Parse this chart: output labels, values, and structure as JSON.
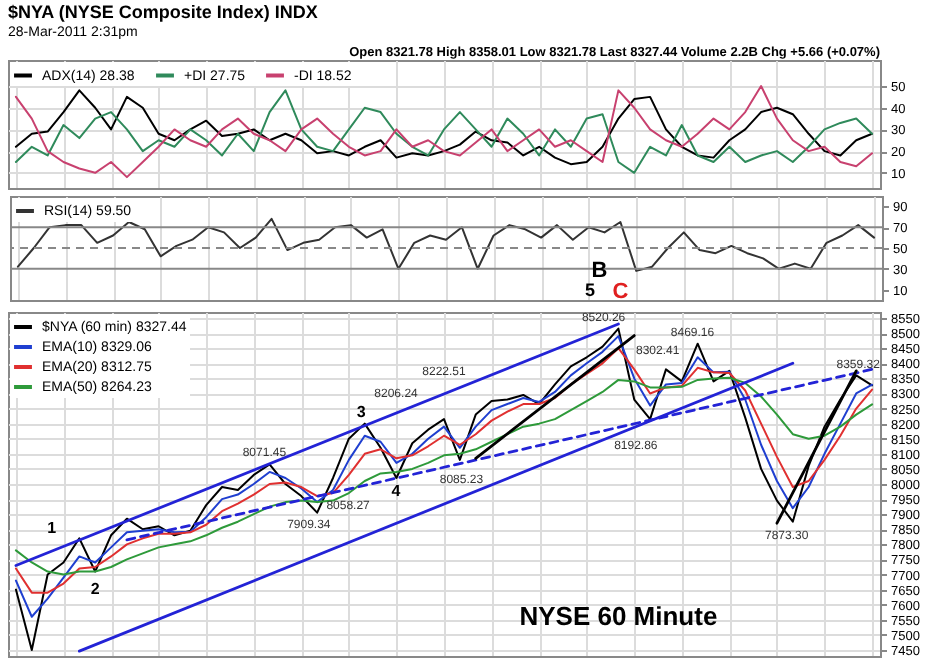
{
  "chart_data": [
    {
      "type": "line",
      "title": "$NYA (NYSE Composite Index) INDX",
      "subtitle": "28-Mar-2011 2:31pm",
      "categories": [
        null,
        null,
        null,
        null,
        null,
        null,
        null,
        null,
        null,
        null,
        null,
        null,
        null,
        null,
        null,
        null,
        null,
        null,
        null,
        null,
        null,
        null,
        null,
        null,
        null,
        null,
        null,
        null,
        null,
        null,
        null,
        null,
        null,
        null,
        null,
        null,
        null,
        null,
        null,
        null,
        null,
        null,
        null,
        null,
        null,
        null,
        null,
        null,
        null,
        null,
        null,
        null,
        null,
        null,
        null
      ],
      "ylim": [
        3,
        62
      ],
      "yticks": [
        10,
        20,
        30,
        40,
        50
      ],
      "grid": true,
      "legend": "top left",
      "tick_labels": "y",
      "annotations": [
        "Open 8321.78 High 8358.01 Low 8321.78 Last 8327.44 Volume 2.2B Chg +5.66 (+0.07%)"
      ],
      "series": [
        {
          "name": "ADX(14) 28.38",
          "color": "#000000",
          "values": [
            22,
            28,
            29,
            38,
            48,
            40,
            30,
            45,
            40,
            28,
            25,
            30,
            34,
            27,
            28,
            30,
            25,
            28,
            25,
            19,
            20,
            18,
            22,
            25,
            17,
            19,
            18,
            20,
            23,
            29,
            25,
            24,
            18,
            22,
            17,
            14,
            15,
            22,
            35,
            44,
            45,
            30,
            22,
            18,
            17,
            25,
            30,
            38,
            40,
            37,
            28,
            20,
            18,
            25,
            28
          ]
        },
        {
          "name": "+DI 27.75",
          "color": "#2f8a5b",
          "values": [
            15,
            22,
            18,
            32,
            26,
            35,
            38,
            30,
            20,
            25,
            22,
            30,
            25,
            18,
            28,
            20,
            38,
            48,
            30,
            22,
            20,
            30,
            40,
            38,
            28,
            22,
            18,
            30,
            38,
            30,
            22,
            35,
            28,
            18,
            30,
            22,
            35,
            37,
            15,
            10,
            22,
            18,
            32,
            18,
            15,
            22,
            15,
            18,
            20,
            15,
            22,
            30,
            33,
            35,
            28
          ]
        },
        {
          "name": "-DI 18.52",
          "color": "#c8416f",
          "values": [
            45,
            35,
            20,
            15,
            12,
            10,
            15,
            8,
            15,
            22,
            30,
            25,
            22,
            30,
            35,
            28,
            25,
            20,
            30,
            35,
            28,
            22,
            18,
            20,
            30,
            22,
            25,
            20,
            18,
            24,
            30,
            20,
            25,
            30,
            22,
            25,
            20,
            15,
            48,
            40,
            30,
            25,
            22,
            28,
            35,
            30,
            38,
            50,
            35,
            25,
            20,
            22,
            15,
            13,
            19
          ]
        }
      ]
    },
    {
      "type": "line",
      "categories": [
        null,
        null,
        null,
        null,
        null,
        null,
        null,
        null,
        null,
        null,
        null,
        null,
        null,
        null,
        null,
        null,
        null,
        null,
        null,
        null,
        null,
        null,
        null,
        null,
        null,
        null,
        null,
        null,
        null,
        null,
        null,
        null,
        null,
        null,
        null,
        null,
        null,
        null,
        null,
        null,
        null,
        null,
        null,
        null,
        null,
        null,
        null,
        null,
        null,
        null,
        null,
        null,
        null,
        null,
        null
      ],
      "ylim": [
        0,
        100
      ],
      "yticks": [
        10,
        30,
        50,
        70,
        90
      ],
      "grid": "x",
      "legend": "top left",
      "tick_labels": "y",
      "ref_lines": [
        {
          "axis": "y",
          "value": 70,
          "color": "#888888"
        },
        {
          "axis": "y",
          "value": 30,
          "color": "#888888"
        },
        {
          "axis": "y",
          "value": 50,
          "color": "#888888",
          "line_style": "dashed"
        }
      ],
      "annotations": [
        "B",
        "5",
        "C"
      ],
      "series": [
        {
          "name": "RSI(14) 59.50",
          "color": "#333333",
          "values": [
            32,
            50,
            70,
            72,
            72,
            55,
            62,
            75,
            68,
            42,
            52,
            58,
            70,
            65,
            50,
            60,
            78,
            48,
            55,
            58,
            70,
            72,
            60,
            68,
            30,
            55,
            62,
            58,
            70,
            30,
            62,
            72,
            68,
            60,
            72,
            58,
            70,
            65,
            75,
            28,
            32,
            50,
            65,
            48,
            45,
            52,
            45,
            40,
            30,
            35,
            30,
            55,
            62,
            72,
            60
          ]
        }
      ]
    },
    {
      "type": "line",
      "categories": [
        null,
        null,
        null,
        null,
        null,
        null,
        null,
        null,
        null,
        null,
        null,
        null,
        null,
        null,
        null,
        null,
        null,
        null,
        null,
        null,
        null,
        null,
        null,
        null,
        null,
        null,
        null,
        null,
        null,
        null,
        null,
        null,
        null,
        null,
        null,
        null,
        null,
        null,
        null,
        null,
        null,
        null,
        null,
        null,
        null,
        null,
        null,
        null,
        null,
        null,
        null,
        null,
        null,
        null,
        null
      ],
      "ylim": [
        7430,
        8570
      ],
      "yticks": [
        7450,
        7500,
        7550,
        7600,
        7650,
        7700,
        7750,
        7800,
        7850,
        7900,
        7950,
        8000,
        8050,
        8100,
        8150,
        8200,
        8250,
        8300,
        8350,
        8400,
        8450,
        8500,
        8550
      ],
      "grid": true,
      "legend": "top left",
      "tick_labels": "y",
      "annotations": [
        "1",
        "2",
        "3",
        "4",
        "8520.26",
        "8469.16",
        "8071.45",
        "8206.24",
        "8222.51",
        "7909.34",
        "8058.27",
        "8085.23",
        "8302.41",
        "8192.86",
        "7873.30",
        "8359.32",
        "NYSE 60 Minute"
      ],
      "series": [
        {
          "name": "$NYA (60 min) 8327.44",
          "color": "#000000",
          "values": [
            7650,
            7450,
            7700,
            7740,
            7820,
            7710,
            7830,
            7885,
            7850,
            7860,
            7830,
            7845,
            7930,
            7990,
            7980,
            8030,
            8065,
            8000,
            7960,
            7905,
            8020,
            8150,
            8200,
            8120,
            8020,
            8135,
            8180,
            8215,
            8080,
            8230,
            8275,
            8280,
            8295,
            8265,
            8330,
            8390,
            8420,
            8455,
            8515,
            8280,
            8215,
            8380,
            8340,
            8465,
            8340,
            8375,
            8220,
            8050,
            7945,
            7875,
            8060,
            8190,
            8280,
            8360,
            8327
          ]
        },
        {
          "name": "EMA(10) 8329.06",
          "color": "#1f3fd0",
          "values": [
            7680,
            7560,
            7620,
            7690,
            7760,
            7740,
            7790,
            7840,
            7845,
            7850,
            7840,
            7842,
            7890,
            7950,
            7965,
            8000,
            8040,
            8020,
            7985,
            7940,
            7980,
            8080,
            8160,
            8140,
            8070,
            8100,
            8150,
            8190,
            8120,
            8190,
            8245,
            8265,
            8285,
            8272,
            8305,
            8360,
            8400,
            8438,
            8490,
            8350,
            8260,
            8330,
            8335,
            8420,
            8370,
            8372,
            8280,
            8130,
            8010,
            7920,
            7990,
            8100,
            8200,
            8300,
            8329
          ]
        },
        {
          "name": "EMA(20) 8312.75",
          "color": "#e03030",
          "values": [
            7720,
            7640,
            7640,
            7670,
            7720,
            7725,
            7760,
            7800,
            7820,
            7835,
            7835,
            7840,
            7865,
            7910,
            7935,
            7965,
            8000,
            8005,
            7990,
            7960,
            7970,
            8030,
            8100,
            8115,
            8085,
            8095,
            8125,
            8160,
            8130,
            8165,
            8210,
            8240,
            8265,
            8265,
            8285,
            8330,
            8365,
            8400,
            8450,
            8380,
            8300,
            8320,
            8325,
            8385,
            8370,
            8368,
            8310,
            8200,
            8090,
            7990,
            8010,
            8080,
            8160,
            8250,
            8313
          ]
        },
        {
          "name": "EMA(50) 8264.23",
          "color": "#2e9a3a",
          "values": [
            7780,
            7740,
            7710,
            7700,
            7710,
            7710,
            7725,
            7750,
            7770,
            7790,
            7800,
            7810,
            7830,
            7855,
            7875,
            7900,
            7925,
            7940,
            7945,
            7940,
            7945,
            7970,
            8010,
            8035,
            8040,
            8050,
            8070,
            8095,
            8100,
            8115,
            8140,
            8165,
            8190,
            8200,
            8215,
            8245,
            8275,
            8305,
            8345,
            8340,
            8320,
            8320,
            8322,
            8345,
            8350,
            8352,
            8335,
            8290,
            8230,
            8165,
            8150,
            8160,
            8190,
            8230,
            8264
          ]
        },
        {
          "color": "#2323d6",
          "values": [
            7730,
            null,
            null,
            null,
            null,
            null,
            null,
            null,
            null,
            null,
            null,
            null,
            null,
            null,
            null,
            null,
            null,
            null,
            null,
            null,
            null,
            null,
            null,
            null,
            null,
            null,
            null,
            null,
            null,
            null,
            null,
            null,
            null,
            null,
            null,
            null,
            null,
            null,
            8530,
            null,
            null,
            null,
            null,
            null,
            null,
            null,
            null,
            null,
            null,
            null,
            null,
            null,
            null,
            null,
            null
          ]
        },
        {
          "color": "#2323d6",
          "values": [
            null,
            null,
            null,
            null,
            7446,
            null,
            null,
            null,
            null,
            null,
            null,
            null,
            null,
            null,
            null,
            null,
            null,
            null,
            null,
            null,
            null,
            null,
            null,
            null,
            null,
            null,
            null,
            null,
            null,
            null,
            null,
            null,
            null,
            null,
            null,
            null,
            null,
            null,
            null,
            null,
            null,
            null,
            null,
            null,
            null,
            null,
            null,
            null,
            null,
            8400,
            null,
            null,
            null,
            null,
            null
          ]
        },
        {
          "color": "#2323d6",
          "line_style": "dashed",
          "values": [
            null,
            null,
            null,
            null,
            null,
            null,
            null,
            7815,
            null,
            null,
            null,
            null,
            null,
            null,
            null,
            null,
            null,
            null,
            null,
            null,
            null,
            null,
            null,
            null,
            null,
            null,
            null,
            null,
            null,
            null,
            null,
            null,
            null,
            null,
            null,
            null,
            null,
            null,
            null,
            null,
            null,
            null,
            null,
            null,
            null,
            null,
            null,
            null,
            null,
            null,
            null,
            null,
            null,
            null,
            8380
          ]
        },
        {
          "color": "#000000",
          "values": [
            null,
            null,
            null,
            null,
            null,
            null,
            null,
            null,
            null,
            null,
            null,
            null,
            null,
            null,
            null,
            null,
            null,
            null,
            null,
            null,
            null,
            null,
            null,
            null,
            null,
            null,
            null,
            null,
            null,
            8085,
            null,
            null,
            null,
            null,
            null,
            null,
            null,
            null,
            null,
            8492,
            null,
            null,
            null,
            null,
            null,
            null,
            null,
            null,
            null,
            null,
            null,
            null,
            null,
            null,
            null
          ]
        },
        {
          "color": "#000000",
          "values": [
            null,
            null,
            null,
            null,
            null,
            null,
            null,
            null,
            null,
            null,
            null,
            null,
            null,
            null,
            null,
            null,
            null,
            null,
            null,
            null,
            null,
            null,
            null,
            null,
            null,
            null,
            null,
            null,
            null,
            null,
            null,
            null,
            null,
            null,
            null,
            null,
            null,
            null,
            null,
            null,
            null,
            null,
            null,
            null,
            null,
            null,
            null,
            null,
            7870,
            null,
            null,
            null,
            null,
            8375,
            null
          ]
        }
      ]
    }
  ]
}
